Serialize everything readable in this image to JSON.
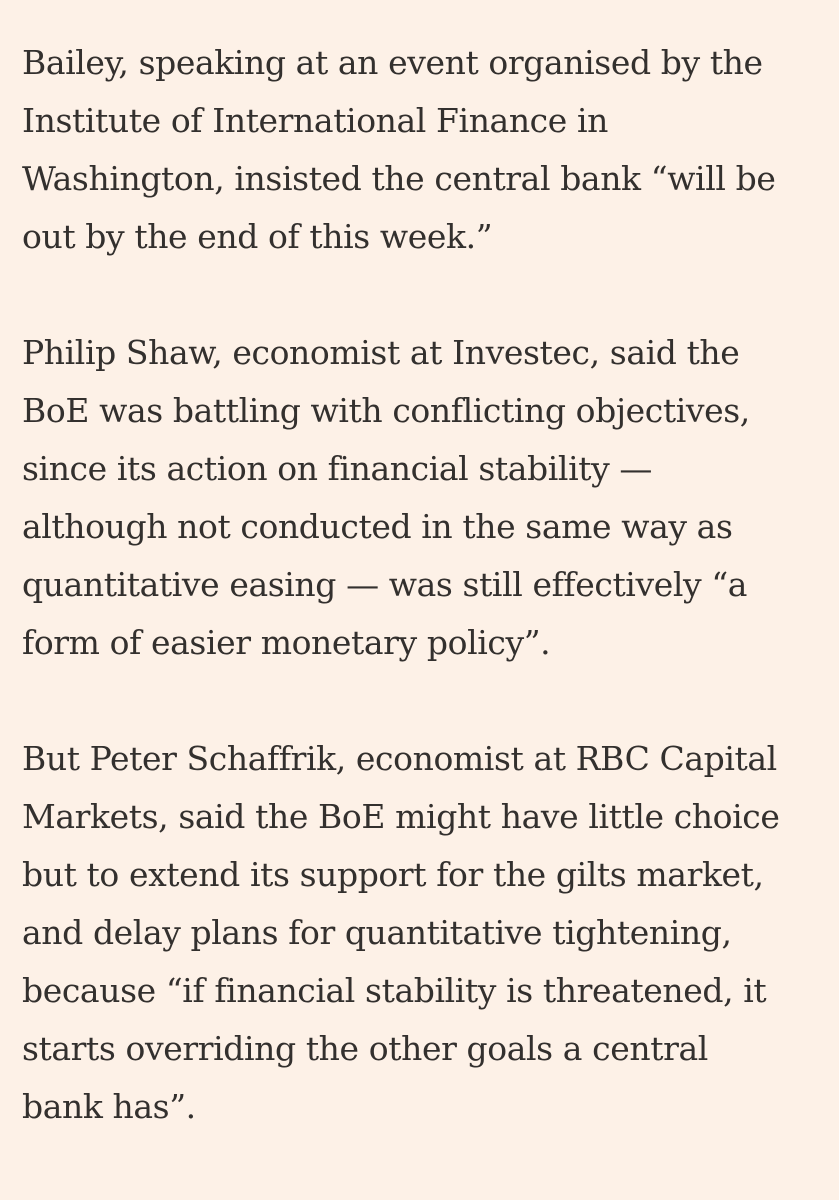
{
  "article": {
    "paragraphs": [
      {
        "lines": [
          "Bailey, speaking at an event organised by the",
          "Institute of International Finance in",
          "Washington, insisted the central bank “will be",
          "out by the end of this week.”"
        ]
      },
      {
        "lines": [
          "Philip Shaw, economist at Investec, said the",
          "BoE was battling with conflicting objectives,",
          "since its action on financial stability —",
          "although not conducted in the same way as",
          "quantitative easing — was still effectively “a",
          "form of easier monetary policy”."
        ]
      },
      {
        "lines": [
          "But Peter Schaffrik, economist at RBC Capital",
          "Markets, said the BoE might have little choice",
          "but to extend its support for the gilts market,",
          "and delay plans for quantitative tightening,",
          "because “if financial stability is threatened, it",
          "starts overriding the other goals a central",
          "bank has”."
        ]
      }
    ]
  },
  "colors": {
    "background": "#fdf1e7",
    "text": "#33302e"
  }
}
